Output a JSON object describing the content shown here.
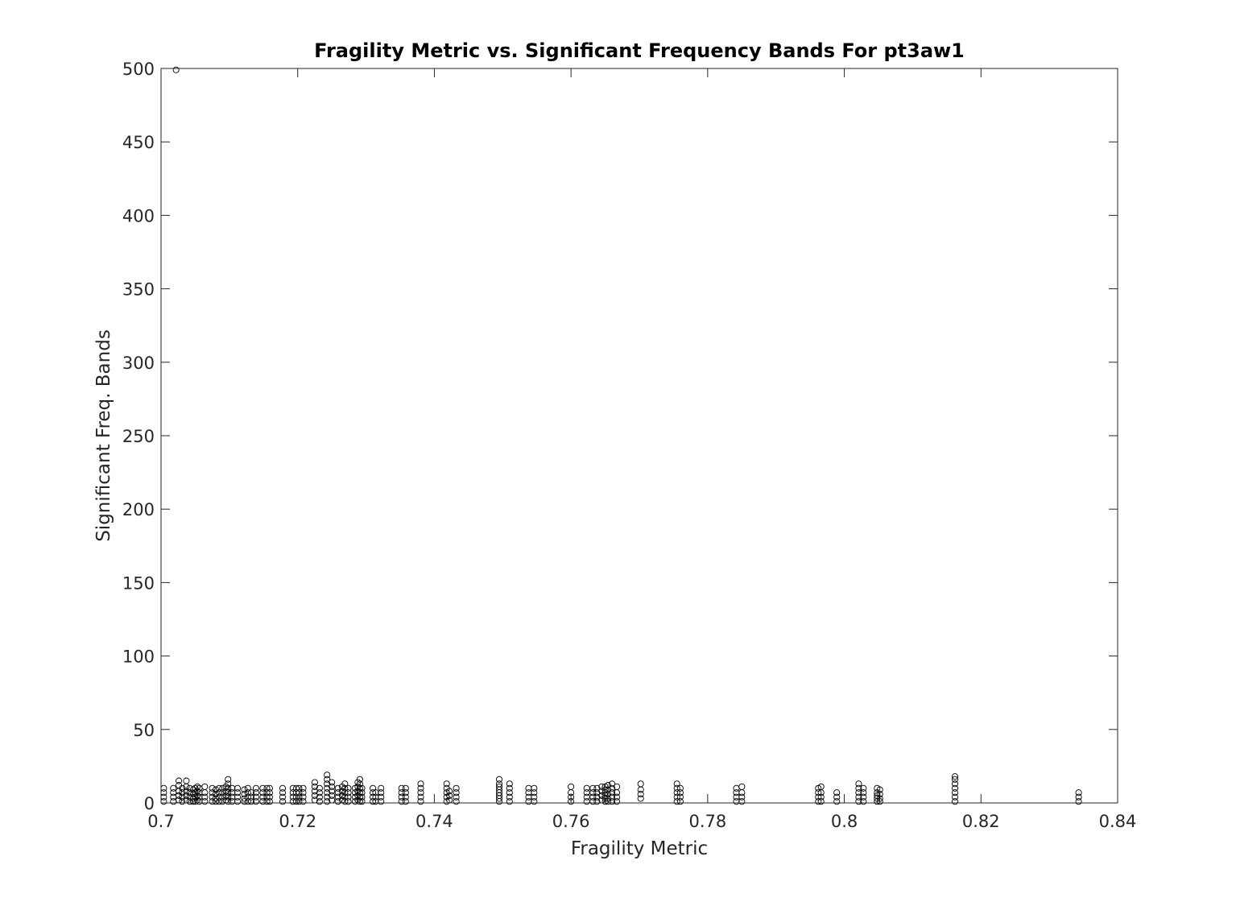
{
  "chart_data": {
    "type": "scatter",
    "title": "Fragility Metric vs. Significant Frequency Bands For pt3aw1",
    "xlabel": "Fragility Metric",
    "ylabel": "Significant Freq. Bands",
    "xlim": [
      0.7,
      0.84
    ],
    "ylim": [
      0,
      500
    ],
    "xticks": [
      0.7,
      0.72,
      0.74,
      0.76,
      0.78,
      0.8,
      0.82,
      0.84
    ],
    "xtick_labels": [
      "0.7",
      "0.72",
      "0.74",
      "0.76",
      "0.78",
      "0.8",
      "0.82",
      "0.84"
    ],
    "yticks": [
      0,
      50,
      100,
      150,
      200,
      250,
      300,
      350,
      400,
      450,
      500
    ],
    "ytick_labels": [
      "0",
      "50",
      "100",
      "150",
      "200",
      "250",
      "300",
      "350",
      "400",
      "450",
      "500"
    ],
    "grid": false,
    "marker": "circle-open",
    "marker_color": "#000000",
    "points": [
      [
        0.7022,
        499
      ],
      [
        0.7004,
        1
      ],
      [
        0.7004,
        4
      ],
      [
        0.7004,
        7
      ],
      [
        0.7004,
        10
      ],
      [
        0.7018,
        1
      ],
      [
        0.7018,
        4
      ],
      [
        0.7018,
        7
      ],
      [
        0.7018,
        10
      ],
      [
        0.7026,
        2
      ],
      [
        0.7026,
        5
      ],
      [
        0.7026,
        8
      ],
      [
        0.7026,
        12
      ],
      [
        0.7026,
        15
      ],
      [
        0.7031,
        1
      ],
      [
        0.7031,
        4
      ],
      [
        0.7031,
        7
      ],
      [
        0.7031,
        10
      ],
      [
        0.7037,
        2
      ],
      [
        0.7037,
        5
      ],
      [
        0.7037,
        8
      ],
      [
        0.7037,
        11
      ],
      [
        0.7037,
        15
      ],
      [
        0.7042,
        1
      ],
      [
        0.7042,
        4
      ],
      [
        0.7042,
        7
      ],
      [
        0.7042,
        10
      ],
      [
        0.7047,
        1
      ],
      [
        0.7047,
        3
      ],
      [
        0.7047,
        6
      ],
      [
        0.7047,
        9
      ],
      [
        0.705,
        1
      ],
      [
        0.705,
        4
      ],
      [
        0.705,
        7
      ],
      [
        0.705,
        10
      ],
      [
        0.7053,
        2
      ],
      [
        0.7053,
        5
      ],
      [
        0.7053,
        8
      ],
      [
        0.7053,
        11
      ],
      [
        0.7056,
        1
      ],
      [
        0.7056,
        4
      ],
      [
        0.7056,
        7
      ],
      [
        0.7056,
        10
      ],
      [
        0.7064,
        1
      ],
      [
        0.7064,
        4
      ],
      [
        0.7064,
        7
      ],
      [
        0.7064,
        11
      ],
      [
        0.7075,
        1
      ],
      [
        0.7075,
        4
      ],
      [
        0.7075,
        7
      ],
      [
        0.7075,
        10
      ],
      [
        0.708,
        1
      ],
      [
        0.708,
        3
      ],
      [
        0.708,
        6
      ],
      [
        0.708,
        9
      ],
      [
        0.7085,
        1
      ],
      [
        0.7085,
        4
      ],
      [
        0.7085,
        7
      ],
      [
        0.7085,
        10
      ],
      [
        0.709,
        1
      ],
      [
        0.709,
        4
      ],
      [
        0.709,
        7
      ],
      [
        0.709,
        10
      ],
      [
        0.7095,
        2
      ],
      [
        0.7095,
        5
      ],
      [
        0.7095,
        8
      ],
      [
        0.7095,
        11
      ],
      [
        0.7098,
        1
      ],
      [
        0.7098,
        4
      ],
      [
        0.7098,
        7
      ],
      [
        0.7098,
        10
      ],
      [
        0.7098,
        13
      ],
      [
        0.7098,
        16
      ],
      [
        0.7104,
        1
      ],
      [
        0.7104,
        4
      ],
      [
        0.7104,
        7
      ],
      [
        0.7104,
        10
      ],
      [
        0.7112,
        1
      ],
      [
        0.7112,
        4
      ],
      [
        0.7112,
        7
      ],
      [
        0.7112,
        10
      ],
      [
        0.7122,
        1
      ],
      [
        0.7122,
        3
      ],
      [
        0.7122,
        6
      ],
      [
        0.7122,
        9
      ],
      [
        0.7127,
        1
      ],
      [
        0.7127,
        4
      ],
      [
        0.7127,
        7
      ],
      [
        0.7127,
        10
      ],
      [
        0.7132,
        1
      ],
      [
        0.7132,
        4
      ],
      [
        0.7132,
        7
      ],
      [
        0.7139,
        1
      ],
      [
        0.7139,
        4
      ],
      [
        0.7139,
        7
      ],
      [
        0.7139,
        10
      ],
      [
        0.7149,
        1
      ],
      [
        0.7149,
        4
      ],
      [
        0.7149,
        7
      ],
      [
        0.7149,
        10
      ],
      [
        0.7155,
        1
      ],
      [
        0.7155,
        4
      ],
      [
        0.7155,
        7
      ],
      [
        0.7155,
        10
      ],
      [
        0.7159,
        1
      ],
      [
        0.7159,
        4
      ],
      [
        0.7159,
        7
      ],
      [
        0.7159,
        10
      ],
      [
        0.7178,
        1
      ],
      [
        0.7178,
        4
      ],
      [
        0.7178,
        7
      ],
      [
        0.7178,
        10
      ],
      [
        0.7193,
        1
      ],
      [
        0.7193,
        4
      ],
      [
        0.7193,
        7
      ],
      [
        0.7193,
        10
      ],
      [
        0.7198,
        1
      ],
      [
        0.7198,
        4
      ],
      [
        0.7198,
        7
      ],
      [
        0.7198,
        10
      ],
      [
        0.7202,
        1
      ],
      [
        0.7202,
        4
      ],
      [
        0.7202,
        7
      ],
      [
        0.7202,
        10
      ],
      [
        0.7208,
        1
      ],
      [
        0.7208,
        4
      ],
      [
        0.7208,
        7
      ],
      [
        0.7208,
        10
      ],
      [
        0.7225,
        2
      ],
      [
        0.7225,
        5
      ],
      [
        0.7225,
        8
      ],
      [
        0.7225,
        11
      ],
      [
        0.7225,
        14
      ],
      [
        0.7232,
        1
      ],
      [
        0.7232,
        4
      ],
      [
        0.7232,
        7
      ],
      [
        0.7232,
        10
      ],
      [
        0.7243,
        1
      ],
      [
        0.7243,
        4
      ],
      [
        0.7243,
        7
      ],
      [
        0.7243,
        10
      ],
      [
        0.7243,
        13
      ],
      [
        0.7243,
        16
      ],
      [
        0.7243,
        19
      ],
      [
        0.725,
        2
      ],
      [
        0.725,
        5
      ],
      [
        0.725,
        8
      ],
      [
        0.725,
        11
      ],
      [
        0.725,
        14
      ],
      [
        0.7259,
        1
      ],
      [
        0.7259,
        4
      ],
      [
        0.7259,
        7
      ],
      [
        0.7259,
        10
      ],
      [
        0.7265,
        2
      ],
      [
        0.7265,
        5
      ],
      [
        0.7265,
        8
      ],
      [
        0.7265,
        11
      ],
      [
        0.7269,
        1
      ],
      [
        0.7269,
        4
      ],
      [
        0.7269,
        7
      ],
      [
        0.7269,
        10
      ],
      [
        0.7269,
        13
      ],
      [
        0.7274,
        1
      ],
      [
        0.7274,
        4
      ],
      [
        0.7274,
        7
      ],
      [
        0.7274,
        10
      ],
      [
        0.7284,
        1
      ],
      [
        0.7284,
        4
      ],
      [
        0.7284,
        7
      ],
      [
        0.7284,
        10
      ],
      [
        0.7288,
        2
      ],
      [
        0.7288,
        5
      ],
      [
        0.7288,
        8
      ],
      [
        0.7288,
        11
      ],
      [
        0.7288,
        14
      ],
      [
        0.7291,
        1
      ],
      [
        0.7291,
        4
      ],
      [
        0.7291,
        7
      ],
      [
        0.7291,
        10
      ],
      [
        0.7291,
        13
      ],
      [
        0.7291,
        16
      ],
      [
        0.7294,
        1
      ],
      [
        0.7294,
        4
      ],
      [
        0.7294,
        7
      ],
      [
        0.7294,
        10
      ],
      [
        0.731,
        1
      ],
      [
        0.731,
        4
      ],
      [
        0.731,
        7
      ],
      [
        0.731,
        10
      ],
      [
        0.7314,
        1
      ],
      [
        0.7314,
        4
      ],
      [
        0.7314,
        7
      ],
      [
        0.7322,
        1
      ],
      [
        0.7322,
        4
      ],
      [
        0.7322,
        7
      ],
      [
        0.7322,
        10
      ],
      [
        0.7352,
        1
      ],
      [
        0.7352,
        4
      ],
      [
        0.7352,
        7
      ],
      [
        0.7352,
        10
      ],
      [
        0.7358,
        1
      ],
      [
        0.7358,
        4
      ],
      [
        0.7358,
        7
      ],
      [
        0.7358,
        10
      ],
      [
        0.738,
        1
      ],
      [
        0.738,
        4
      ],
      [
        0.738,
        7
      ],
      [
        0.738,
        10
      ],
      [
        0.738,
        13
      ],
      [
        0.7418,
        1
      ],
      [
        0.7418,
        4
      ],
      [
        0.7418,
        7
      ],
      [
        0.7418,
        10
      ],
      [
        0.7418,
        13
      ],
      [
        0.7422,
        2
      ],
      [
        0.7422,
        5
      ],
      [
        0.7422,
        8
      ],
      [
        0.7432,
        1
      ],
      [
        0.7432,
        4
      ],
      [
        0.7432,
        7
      ],
      [
        0.7432,
        10
      ],
      [
        0.7495,
        1
      ],
      [
        0.7495,
        3
      ],
      [
        0.7495,
        5
      ],
      [
        0.7495,
        7
      ],
      [
        0.7495,
        9
      ],
      [
        0.7495,
        11
      ],
      [
        0.7495,
        13
      ],
      [
        0.7495,
        16
      ],
      [
        0.751,
        1
      ],
      [
        0.751,
        4
      ],
      [
        0.751,
        7
      ],
      [
        0.751,
        10
      ],
      [
        0.751,
        13
      ],
      [
        0.7538,
        1
      ],
      [
        0.7538,
        4
      ],
      [
        0.7538,
        7
      ],
      [
        0.7538,
        10
      ],
      [
        0.7546,
        1
      ],
      [
        0.7546,
        4
      ],
      [
        0.7546,
        7
      ],
      [
        0.7546,
        10
      ],
      [
        0.76,
        1
      ],
      [
        0.76,
        4
      ],
      [
        0.76,
        7
      ],
      [
        0.76,
        11
      ],
      [
        0.7623,
        1
      ],
      [
        0.7623,
        4
      ],
      [
        0.7623,
        7
      ],
      [
        0.7623,
        10
      ],
      [
        0.7632,
        1
      ],
      [
        0.7632,
        4
      ],
      [
        0.7632,
        7
      ],
      [
        0.7632,
        10
      ],
      [
        0.7638,
        1
      ],
      [
        0.7638,
        4
      ],
      [
        0.7638,
        7
      ],
      [
        0.7638,
        10
      ],
      [
        0.7645,
        2
      ],
      [
        0.7645,
        5
      ],
      [
        0.7645,
        8
      ],
      [
        0.7645,
        11
      ],
      [
        0.765,
        1
      ],
      [
        0.765,
        3
      ],
      [
        0.765,
        5
      ],
      [
        0.765,
        7
      ],
      [
        0.765,
        9
      ],
      [
        0.765,
        11
      ],
      [
        0.7654,
        1
      ],
      [
        0.7654,
        3
      ],
      [
        0.7654,
        6
      ],
      [
        0.7654,
        9
      ],
      [
        0.7654,
        12
      ],
      [
        0.766,
        1
      ],
      [
        0.766,
        4
      ],
      [
        0.766,
        7
      ],
      [
        0.766,
        10
      ],
      [
        0.766,
        13
      ],
      [
        0.7667,
        1
      ],
      [
        0.7667,
        4
      ],
      [
        0.7667,
        7
      ],
      [
        0.7667,
        11
      ],
      [
        0.7702,
        3
      ],
      [
        0.7702,
        6
      ],
      [
        0.7702,
        9
      ],
      [
        0.7702,
        13
      ],
      [
        0.7755,
        1
      ],
      [
        0.7755,
        4
      ],
      [
        0.7755,
        7
      ],
      [
        0.7755,
        10
      ],
      [
        0.7755,
        13
      ],
      [
        0.776,
        1
      ],
      [
        0.776,
        4
      ],
      [
        0.776,
        7
      ],
      [
        0.776,
        10
      ],
      [
        0.7842,
        1
      ],
      [
        0.7842,
        4
      ],
      [
        0.7842,
        7
      ],
      [
        0.7842,
        10
      ],
      [
        0.785,
        1
      ],
      [
        0.785,
        4
      ],
      [
        0.785,
        7
      ],
      [
        0.785,
        11
      ],
      [
        0.7962,
        1
      ],
      [
        0.7962,
        4
      ],
      [
        0.7962,
        7
      ],
      [
        0.7962,
        10
      ],
      [
        0.7966,
        1
      ],
      [
        0.7966,
        4
      ],
      [
        0.7966,
        7
      ],
      [
        0.7966,
        11
      ],
      [
        0.7989,
        1
      ],
      [
        0.7989,
        4
      ],
      [
        0.7989,
        7
      ],
      [
        0.8021,
        1
      ],
      [
        0.8021,
        4
      ],
      [
        0.8021,
        7
      ],
      [
        0.8021,
        10
      ],
      [
        0.8021,
        13
      ],
      [
        0.8028,
        1
      ],
      [
        0.8028,
        4
      ],
      [
        0.8028,
        7
      ],
      [
        0.8028,
        10
      ],
      [
        0.8048,
        1
      ],
      [
        0.8048,
        3
      ],
      [
        0.8048,
        5
      ],
      [
        0.8048,
        7
      ],
      [
        0.8048,
        10
      ],
      [
        0.8052,
        1
      ],
      [
        0.8052,
        3
      ],
      [
        0.8052,
        6
      ],
      [
        0.8052,
        9
      ],
      [
        0.8162,
        1
      ],
      [
        0.8162,
        4
      ],
      [
        0.8162,
        7
      ],
      [
        0.8162,
        10
      ],
      [
        0.8162,
        13
      ],
      [
        0.8162,
        16
      ],
      [
        0.8162,
        18
      ],
      [
        0.8343,
        1
      ],
      [
        0.8343,
        4
      ],
      [
        0.8343,
        7
      ]
    ]
  }
}
